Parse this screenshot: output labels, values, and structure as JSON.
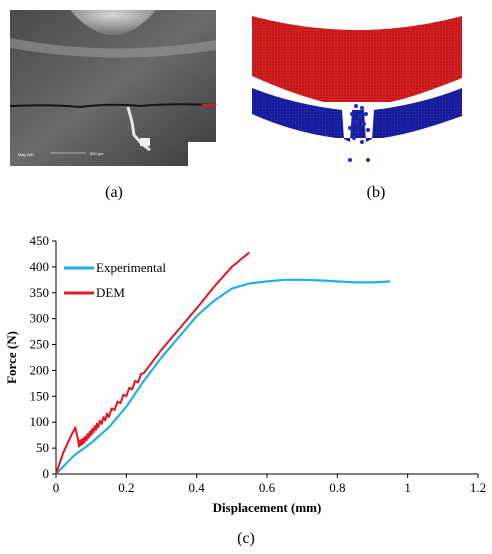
{
  "panels": {
    "a_label": "(a)",
    "b_label": "(b)",
    "c_label": "(c)"
  },
  "colors": {
    "experimental": "#1fb0ea",
    "dem": "#e8141b",
    "particles_red": "#d81e1e",
    "particles_blue": "#1a1fae"
  },
  "chart_data": {
    "type": "line",
    "xlabel": "Displacement (mm)",
    "ylabel": "Force (N)",
    "xlim": [
      0,
      1.2
    ],
    "ylim": [
      0,
      450
    ],
    "xticks": [
      "0",
      "0.2",
      "0.4",
      "0.6",
      "0.8",
      "1",
      "1.2"
    ],
    "yticks": [
      "0",
      "50",
      "100",
      "150",
      "200",
      "250",
      "300",
      "350",
      "400",
      "450"
    ],
    "legend_position": "top-left",
    "series": [
      {
        "name": "Experimental",
        "x": [
          0,
          0.05,
          0.1,
          0.15,
          0.2,
          0.25,
          0.3,
          0.35,
          0.4,
          0.45,
          0.5,
          0.55,
          0.6,
          0.65,
          0.7,
          0.75,
          0.8,
          0.85,
          0.9,
          0.95
        ],
        "y": [
          0,
          35,
          60,
          90,
          130,
          180,
          225,
          265,
          305,
          335,
          358,
          368,
          372,
          375,
          375,
          374,
          372,
          370,
          370,
          372
        ]
      },
      {
        "name": "DEM",
        "x": [
          0,
          0.02,
          0.04,
          0.055,
          0.065,
          0.08,
          0.1,
          0.12,
          0.15,
          0.2,
          0.25,
          0.3,
          0.35,
          0.4,
          0.45,
          0.5,
          0.55
        ],
        "y": [
          0,
          40,
          70,
          90,
          58,
          65,
          80,
          95,
          115,
          155,
          195,
          240,
          280,
          320,
          362,
          400,
          428
        ]
      }
    ]
  }
}
